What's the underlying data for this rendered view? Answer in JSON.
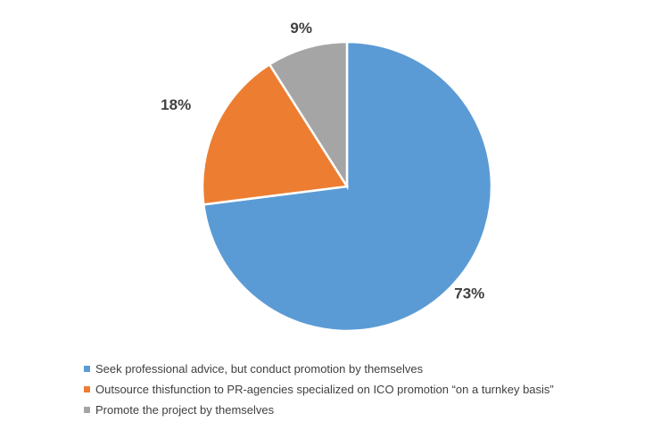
{
  "chart_data": {
    "type": "pie",
    "categories": [
      "Seek professional advice, but conduct promotion by themselves",
      "Outsource thisfunction to PR-agencies specialized on ICO promotion “on a turnkey basis”",
      "Promote the project by themselves"
    ],
    "values": [
      73,
      18,
      9
    ],
    "data_labels": [
      "73%",
      "18%",
      "9%"
    ],
    "colors": [
      "#5b9bd5",
      "#ed7d31",
      "#a5a5a5"
    ],
    "start_angle": "12 o'clock",
    "direction": "clockwise",
    "legend_position": "bottom-left"
  }
}
